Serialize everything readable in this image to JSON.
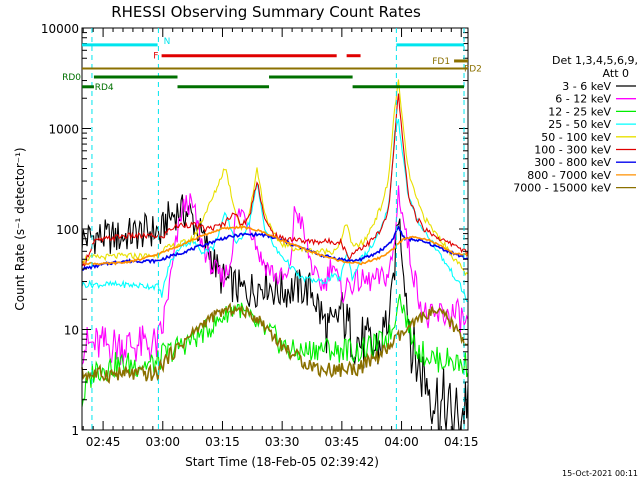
{
  "chart_data": {
    "type": "line",
    "title": "RHESSI Observing Summary Count Rates",
    "xlabel": "Start Time (18-Feb-05 02:39:42)",
    "ylabel": "Count Rate (s⁻¹ detector⁻¹)",
    "y_scale": "log",
    "ylim": [
      1,
      10000
    ],
    "xlim_min": [
      0,
      97
    ],
    "x_unit": "minutes after 02:39:42",
    "y_ticks": [
      {
        "value": 1,
        "label": "1"
      },
      {
        "value": 10,
        "label": "10"
      },
      {
        "value": 100,
        "label": "100"
      },
      {
        "value": 1000,
        "label": "1000"
      },
      {
        "value": 10000,
        "label": "10000"
      }
    ],
    "x_ticks": [
      {
        "min": 5.3,
        "label": "02:45"
      },
      {
        "min": 20.3,
        "label": "03:00"
      },
      {
        "min": 35.3,
        "label": "03:15"
      },
      {
        "min": 50.3,
        "label": "03:30"
      },
      {
        "min": 65.3,
        "label": "03:45"
      },
      {
        "min": 80.3,
        "label": "04:00"
      },
      {
        "min": 95.3,
        "label": "04:15"
      }
    ],
    "legend_header": [
      "Det 1,3,4,5,6,9,",
      "Att 0"
    ],
    "timestamp": "15-Oct-2021 00:11",
    "annotations": {
      "N": {
        "label": "N",
        "color": "#00e5ee",
        "bars": [
          [
            0,
            19
          ],
          [
            79,
            96
          ]
        ]
      },
      "F": {
        "label": "F",
        "color": "#e00000",
        "bars": [
          [
            20,
            64
          ],
          [
            66.5,
            70
          ]
        ]
      },
      "FD1": {
        "label": "FD1",
        "color": "#8b7000",
        "bars": [
          [
            0,
            97
          ]
        ]
      },
      "FD2": {
        "label": "FD2",
        "color": "#8b7000",
        "bars": [
          [
            93.5,
            97
          ]
        ]
      },
      "RD0": {
        "label": "RD0",
        "color": "#007000",
        "bars": [
          [
            3,
            24
          ],
          [
            47,
            68
          ]
        ]
      },
      "RD4": {
        "label": "RD4",
        "color": "#007000",
        "bars": [
          [
            0,
            3
          ],
          [
            24,
            47
          ],
          [
            68,
            96
          ]
        ]
      }
    },
    "vertical_markers_min": [
      2.5,
      19.2,
      79,
      96
    ],
    "series": [
      {
        "name": "3 - 6 keV",
        "color": "#000000",
        "x": [
          0,
          3,
          9,
          12,
          14,
          16,
          19,
          19.5,
          21,
          24,
          27,
          32,
          35,
          38,
          40,
          43,
          46,
          49,
          52,
          55,
          58,
          61,
          63,
          65,
          67,
          69,
          71,
          73,
          75,
          76.5,
          77.5,
          78.5,
          79.5,
          81,
          83,
          85,
          87,
          89,
          91,
          93,
          95,
          97
        ],
        "y": [
          80,
          84,
          82,
          88,
          90,
          95,
          96,
          80,
          120,
          150,
          145,
          60,
          32,
          28,
          24,
          25,
          30,
          24,
          25,
          26,
          24,
          11,
          9,
          16,
          10,
          8,
          7,
          6,
          7,
          12,
          13,
          40,
          150,
          35,
          6,
          4,
          3,
          2,
          1.5,
          1.2,
          1.2,
          2.5
        ]
      },
      {
        "name": "6 - 12 keV",
        "color": "#ff00ff",
        "x": [
          0,
          19,
          20,
          22,
          25,
          26.5,
          28,
          30,
          33,
          35,
          37,
          38.5,
          40,
          42,
          45,
          49,
          52,
          53.5,
          55,
          57,
          59,
          61,
          63,
          65,
          67,
          69,
          72,
          75,
          77,
          78.5,
          79.5,
          81,
          83,
          86,
          88,
          90,
          92,
          94,
          96,
          97
        ],
        "y": [
          7,
          7,
          9,
          28,
          150,
          185,
          160,
          75,
          40,
          32,
          40,
          120,
          150,
          120,
          50,
          33,
          32,
          160,
          120,
          55,
          30,
          28,
          50,
          23,
          28,
          30,
          30,
          32,
          35,
          65,
          250,
          110,
          40,
          14,
          12,
          14,
          14,
          14,
          12,
          10
        ]
      },
      {
        "name": "12 - 25 keV",
        "color": "#00ee00",
        "x": [
          0,
          3,
          10,
          19,
          20,
          22,
          25,
          28,
          30,
          33,
          36,
          39,
          42,
          45,
          48,
          50,
          53,
          56,
          59,
          62,
          64,
          66,
          69,
          72,
          75,
          77,
          78.5,
          79.5,
          81,
          83,
          85,
          87,
          89,
          91,
          93,
          95,
          97
        ],
        "y": [
          2,
          4,
          4.5,
          4.5,
          5.5,
          6,
          7,
          8,
          9,
          11,
          14,
          17,
          13,
          10,
          9,
          7,
          6,
          6,
          6.5,
          6.5,
          6,
          6.5,
          6,
          6.5,
          7.5,
          8.5,
          11,
          23,
          15,
          8,
          6,
          5.5,
          5,
          5,
          5,
          4.5,
          4.5
        ]
      },
      {
        "name": "25 - 50 keV",
        "color": "#00ffff",
        "x": [
          0,
          3,
          10,
          17,
          19,
          20,
          22,
          25,
          28,
          30,
          33,
          36,
          39,
          42,
          44,
          46,
          49,
          51,
          53,
          55,
          57,
          59,
          61,
          63,
          65,
          66.5,
          68,
          70,
          72,
          74,
          76,
          77.5,
          78.5,
          79.5,
          80.5,
          82,
          84,
          86,
          88,
          90,
          92,
          94,
          96,
          97
        ],
        "y": [
          28,
          28,
          28,
          27,
          27,
          22,
          45,
          70,
          75,
          60,
          65,
          140,
          70,
          115,
          280,
          100,
          60,
          50,
          40,
          32,
          32,
          30,
          30,
          34,
          32,
          60,
          32,
          50,
          60,
          80,
          120,
          220,
          900,
          1250,
          600,
          210,
          130,
          95,
          75,
          55,
          42,
          32,
          23,
          18
        ]
      },
      {
        "name": "50 - 100 keV",
        "color": "#e8e000",
        "x": [
          0,
          3,
          10,
          19,
          20,
          22,
          25,
          28,
          30,
          33,
          36,
          38,
          40,
          42,
          44,
          46,
          48,
          50,
          53,
          55,
          57,
          60,
          63,
          65,
          66.5,
          68,
          71,
          73,
          75,
          77,
          78.5,
          79.5,
          80.5,
          82,
          84,
          86,
          88,
          90,
          92,
          94,
          96,
          97
        ],
        "y": [
          50,
          52,
          54,
          54,
          62,
          66,
          72,
          80,
          120,
          210,
          420,
          180,
          100,
          140,
          400,
          140,
          90,
          72,
          65,
          62,
          61,
          60,
          60,
          72,
          120,
          65,
          75,
          110,
          160,
          300,
          1500,
          3000,
          1200,
          380,
          200,
          130,
          100,
          80,
          62,
          48,
          38,
          34
        ]
      },
      {
        "name": "100 - 300 keV",
        "color": "#e00000",
        "x": [
          0,
          3,
          10,
          19,
          20,
          22,
          25,
          28,
          31,
          34,
          36,
          38,
          40,
          42,
          44,
          46,
          48,
          50,
          53,
          56,
          59,
          62,
          65,
          67,
          69,
          72,
          75,
          77,
          78.5,
          79.5,
          80.5,
          82,
          84,
          86,
          88,
          90,
          92,
          94,
          96,
          97
        ],
        "y": [
          40,
          75,
          85,
          85,
          80,
          100,
          110,
          110,
          100,
          105,
          115,
          150,
          110,
          130,
          310,
          120,
          90,
          80,
          80,
          75,
          75,
          75,
          75,
          52,
          62,
          72,
          95,
          150,
          700,
          2300,
          800,
          220,
          130,
          100,
          90,
          80,
          72,
          70,
          60,
          58
        ]
      },
      {
        "name": "300 - 800 keV",
        "color": "#0000ee",
        "x": [
          0,
          5,
          10,
          15,
          19,
          20,
          25,
          30,
          35,
          40,
          45,
          50,
          55,
          60,
          65,
          68,
          70,
          73,
          76,
          78,
          79.5,
          81,
          84,
          87,
          90,
          93,
          97
        ],
        "y": [
          40,
          44,
          48,
          48,
          48,
          50,
          58,
          68,
          80,
          88,
          88,
          78,
          65,
          55,
          50,
          48,
          50,
          55,
          65,
          78,
          105,
          80,
          78,
          72,
          65,
          58,
          50
        ]
      },
      {
        "name": "800 - 7000 keV",
        "color": "#ff9000",
        "x": [
          0,
          5,
          10,
          15,
          20,
          25,
          30,
          35,
          40,
          45,
          50,
          55,
          60,
          65,
          70,
          75,
          78,
          79.5,
          81,
          84,
          87,
          90,
          93,
          97
        ],
        "y": [
          46,
          45,
          46,
          50,
          58,
          70,
          85,
          100,
          105,
          95,
          78,
          65,
          55,
          48,
          45,
          52,
          62,
          72,
          80,
          84,
          78,
          68,
          58,
          55
        ]
      },
      {
        "name": "7000 - 15000 keV",
        "color": "#8b7000",
        "x": [
          0,
          5,
          10,
          15,
          19,
          20,
          23,
          27,
          31,
          35,
          38,
          41,
          44,
          47,
          50,
          55,
          60,
          65,
          70,
          73,
          76,
          79,
          82,
          85,
          88,
          91,
          94,
          97
        ],
        "y": [
          3.6,
          3.6,
          3.6,
          3.6,
          3.6,
          4.5,
          6,
          8.5,
          12,
          15,
          16,
          15,
          13,
          10,
          7,
          5,
          4,
          4,
          4.2,
          5,
          6,
          8,
          10,
          13,
          15,
          14,
          10,
          7
        ]
      }
    ]
  }
}
